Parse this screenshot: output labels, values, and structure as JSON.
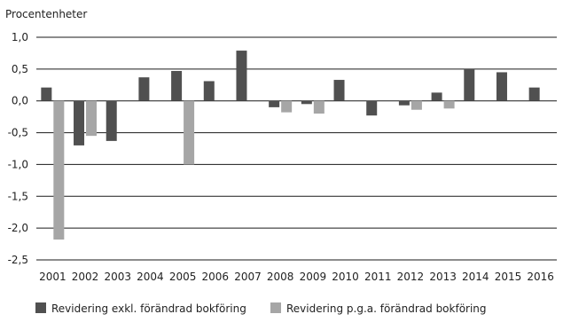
{
  "chart_data": {
    "type": "bar",
    "unit_label": "Procentenheter",
    "categories": [
      "2001",
      "2002",
      "2003",
      "2004",
      "2005",
      "2006",
      "2007",
      "2008",
      "2009",
      "2010",
      "2011",
      "2012",
      "2013",
      "2014",
      "2015",
      "2016"
    ],
    "series": [
      {
        "name": "Revidering exkl. förändrad bokföring",
        "color": "#505050",
        "values": [
          0.21,
          -0.7,
          -0.63,
          0.37,
          0.47,
          0.31,
          0.79,
          -0.1,
          -0.05,
          0.33,
          -0.23,
          -0.07,
          0.13,
          0.5,
          0.45,
          0.21
        ]
      },
      {
        "name": "Revidering p.g.a. förändrad bokföring",
        "color": "#a6a6a6",
        "values": [
          -2.18,
          -0.55,
          null,
          null,
          -1.0,
          null,
          null,
          -0.18,
          -0.2,
          null,
          null,
          -0.14,
          -0.12,
          null,
          null,
          null
        ]
      }
    ],
    "yticks": [
      "1,0",
      "0,5",
      "0,0",
      "-0,5",
      "-1,0",
      "-1,5",
      "-2,0",
      "-2,5"
    ],
    "ytick_values": [
      1.0,
      0.5,
      0.0,
      -0.5,
      -1.0,
      -1.5,
      -2.0,
      -2.5
    ],
    "ylim": [
      -2.5,
      1.0
    ],
    "grid": true,
    "legend_position": "bottom"
  }
}
